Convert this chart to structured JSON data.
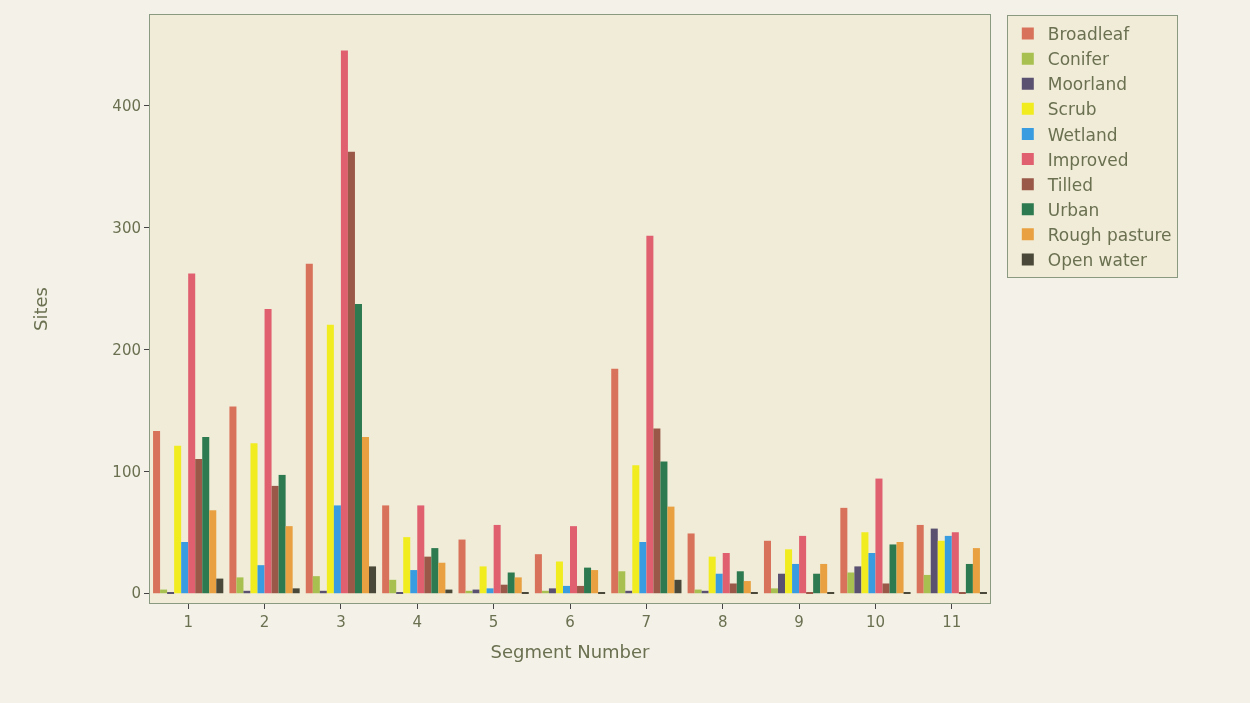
{
  "chart_data": {
    "type": "bar",
    "xlabel": "Segment Number",
    "ylabel": "Sites",
    "categories": [
      "1",
      "2",
      "3",
      "4",
      "5",
      "6",
      "7",
      "8",
      "9",
      "10",
      "11"
    ],
    "series": [
      {
        "name": "Broadleaf",
        "color": "#d9725a",
        "values": [
          133,
          153,
          270,
          72,
          44,
          32,
          184,
          49,
          43,
          70,
          56
        ]
      },
      {
        "name": "Conifer",
        "color": "#a8c050",
        "values": [
          3,
          13,
          14,
          11,
          2,
          2,
          18,
          3,
          4,
          17,
          15
        ]
      },
      {
        "name": "Moorland",
        "color": "#5a5070",
        "values": [
          1,
          2,
          2,
          1,
          3,
          4,
          2,
          2,
          16,
          22,
          53
        ]
      },
      {
        "name": "Scrub",
        "color": "#f0ec20",
        "values": [
          121,
          123,
          220,
          46,
          22,
          26,
          105,
          30,
          36,
          50,
          43
        ]
      },
      {
        "name": "Wetland",
        "color": "#3a9ce0",
        "values": [
          42,
          23,
          72,
          19,
          4,
          6,
          42,
          16,
          24,
          33,
          47
        ]
      },
      {
        "name": "Improved",
        "color": "#e06070",
        "values": [
          262,
          233,
          445,
          72,
          56,
          55,
          293,
          33,
          47,
          94,
          50
        ]
      },
      {
        "name": "Tilled",
        "color": "#9a5848",
        "values": [
          110,
          88,
          362,
          30,
          7,
          6,
          135,
          8,
          1,
          8,
          1
        ]
      },
      {
        "name": "Urban",
        "color": "#2e7a50",
        "values": [
          128,
          97,
          237,
          37,
          17,
          21,
          108,
          18,
          16,
          40,
          24
        ]
      },
      {
        "name": "Rough pasture",
        "color": "#e8a040",
        "values": [
          68,
          55,
          128,
          25,
          13,
          19,
          71,
          10,
          24,
          42,
          37
        ]
      },
      {
        "name": "Open water",
        "color": "#4a4838",
        "values": [
          12,
          4,
          22,
          3,
          1,
          1,
          11,
          1,
          1,
          1,
          1
        ]
      }
    ],
    "ylim": [
      -8,
      474
    ],
    "yticks": [
      0,
      100,
      200,
      300,
      400
    ],
    "grid": false,
    "legend": "top right"
  }
}
